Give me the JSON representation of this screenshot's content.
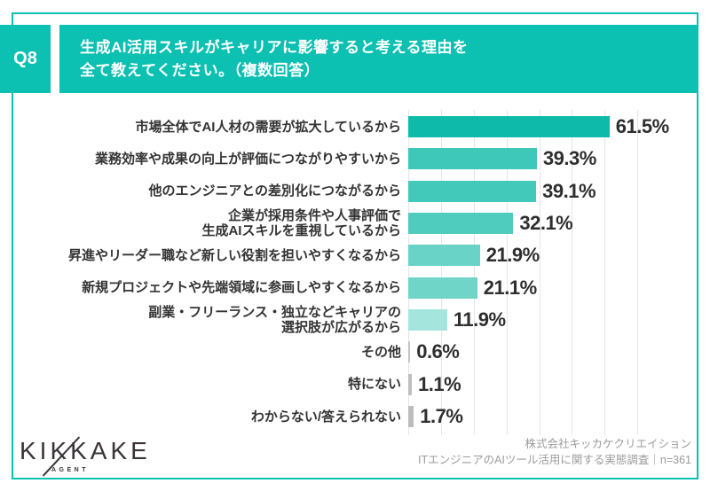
{
  "header": {
    "badge": "Q8",
    "title_line1": "生成AI活用スキルがキャリアに影響すると考える理由を",
    "title_line2": "全て教えてください。（複数回答）"
  },
  "chart_data": {
    "type": "bar",
    "orientation": "horizontal",
    "title": "生成AI活用スキルがキャリアに影響すると考える理由（複数回答）",
    "categories": [
      "市場全体でAI人材の需要が拡大しているから",
      "業務効率や成果の向上が評価につながりやすいから",
      "他のエンジニアとの差別化につながるから",
      "企業が採用条件や人事評価で\n生成AIスキルを重視しているから",
      "昇進やリーダー職など新しい役割を担いやすくなるから",
      "新規プロジェクトや先端領域に参画しやすくなるから",
      "副業・フリーランス・独立などキャリアの\n選択肢が広がるから",
      "その他",
      "特にない",
      "わからない/答えられない"
    ],
    "values": [
      61.5,
      39.3,
      39.1,
      32.1,
      21.9,
      21.1,
      11.9,
      0.6,
      1.1,
      1.7
    ],
    "value_labels": [
      "61.5%",
      "39.3%",
      "39.1%",
      "32.1%",
      "21.9%",
      "21.1%",
      "11.9%",
      "0.6%",
      "1.1%",
      "1.7%"
    ],
    "bar_colors": [
      "#0ebbab",
      "#3ec8b9",
      "#43c9ba",
      "#4fccbe",
      "#68d3c6",
      "#6fd5c8",
      "#a4e6dd",
      "#c3c3c3",
      "#bfbfbf",
      "#bcbcbc"
    ],
    "xlim": [
      0,
      80
    ],
    "gridline_interval_pct": 10,
    "gridline_max_pct": 70,
    "grid": true,
    "legend": false
  },
  "footer": {
    "logo_text": "KIKKAKE",
    "logo_subtext": "AGENT",
    "credit_line1": "株式会社キッカケクリエイション",
    "credit_line2": "ITエンジニアのAIツール活用に関する実態調査｜n=361"
  },
  "colors": {
    "accent": "#0cc0b2",
    "grid": "#e5e5e5",
    "label_text": "#333333",
    "value_text": "#2e2e2e",
    "footer_text": "#9b9b9b",
    "logo_color": "#3a3339"
  }
}
